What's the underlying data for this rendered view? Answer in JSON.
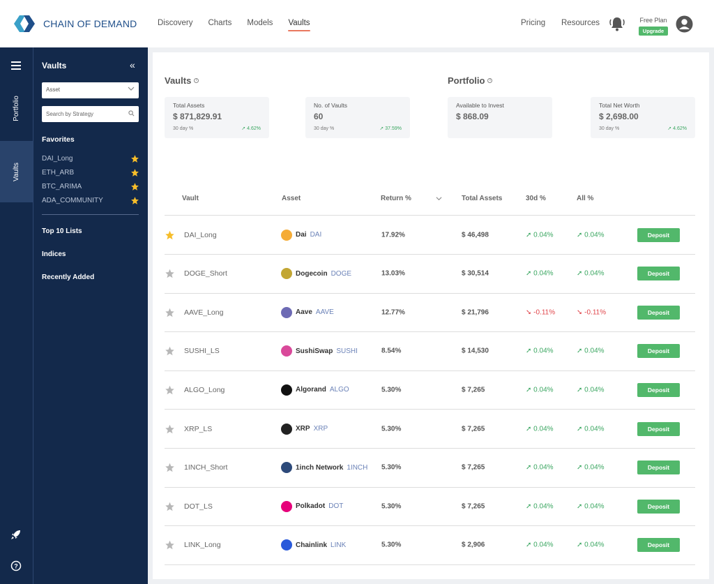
{
  "brand": {
    "name": "CHAIN OF DEMAND",
    "logo_icon": "chain-link-logo"
  },
  "nav": {
    "links": [
      "Discovery",
      "Charts",
      "Models",
      "Vaults"
    ],
    "active": "Vaults",
    "pricing": "Pricing",
    "resources": "Resources",
    "plan_label": "Free Plan",
    "upgrade_label": "Upgrade"
  },
  "rail": {
    "portfolio": "Portfolio",
    "vaults": "Vaults",
    "active": "Vaults"
  },
  "panel": {
    "title": "Vaults",
    "asset_select": "Asset",
    "search_placeholder": "Search by Strategy",
    "favorites_title": "Favorites",
    "favorites": [
      "DAI_Long",
      "ETH_ARB",
      "BTC_ARIMA",
      "ADA_COMMUNITY"
    ],
    "sections": [
      "Top 10 Lists",
      "Indices",
      "Recently Added"
    ]
  },
  "vaults_section": {
    "title": "Vaults",
    "cards": [
      {
        "label": "Total Assets",
        "value": "$ 871,829.91",
        "sub": "30 day %",
        "pct": "4.62%"
      },
      {
        "label": "No. of Vaults",
        "value": "60",
        "sub": "30 day %",
        "pct": "37.59%"
      }
    ]
  },
  "portfolio_section": {
    "title": "Portfolio",
    "cards": [
      {
        "label": "Available to Invest",
        "value": "$ 868.09"
      },
      {
        "label": "Total Net Worth",
        "value": "$ 2,698.00",
        "sub": "30 day %",
        "pct": "4.62%"
      }
    ]
  },
  "table": {
    "headers": {
      "vault": "Vault",
      "asset": "Asset",
      "return": "Return %",
      "total": "Total Assets",
      "d30": "30d %",
      "all": "All %"
    },
    "deposit_label": "Deposit",
    "rows": [
      {
        "fav": true,
        "vault": "DAI_Long",
        "asset": "Dai",
        "symbol": "DAI",
        "coin_color": "#f5ac37",
        "return": "17.92%",
        "total": "$ 46,498",
        "d30": "0.04%",
        "all": "0.04%",
        "up": true
      },
      {
        "fav": false,
        "vault": "DOGE_Short",
        "asset": "Dogecoin",
        "symbol": "DOGE",
        "coin_color": "#c2a633",
        "return": "13.03%",
        "total": "$ 30,514",
        "d30": "0.04%",
        "all": "0.04%",
        "up": true
      },
      {
        "fav": false,
        "vault": "AAVE_Long",
        "asset": "Aave",
        "symbol": "AAVE",
        "coin_color": "#6d6ab4",
        "return": "12.77%",
        "total": "$ 21,796",
        "d30": "-0.11%",
        "all": "-0.11%",
        "up": false
      },
      {
        "fav": false,
        "vault": "SUSHI_LS",
        "asset": "SushiSwap",
        "symbol": "SUSHI",
        "coin_color": "#d9499a",
        "return": "8.54%",
        "total": "$ 14,530",
        "d30": "0.04%",
        "all": "0.04%",
        "up": true
      },
      {
        "fav": false,
        "vault": "ALGO_Long",
        "asset": "Algorand",
        "symbol": "ALGO",
        "coin_color": "#111111",
        "return": "5.30%",
        "total": "$ 7,265",
        "d30": "0.04%",
        "all": "0.04%",
        "up": true
      },
      {
        "fav": false,
        "vault": "XRP_LS",
        "asset": "XRP",
        "symbol": "XRP",
        "coin_color": "#222222",
        "return": "5.30%",
        "total": "$ 7,265",
        "d30": "0.04%",
        "all": "0.04%",
        "up": true
      },
      {
        "fav": false,
        "vault": "1INCH_Short",
        "asset": "1inch Network",
        "symbol": "1INCH",
        "coin_color": "#2d4a7a",
        "return": "5.30%",
        "total": "$ 7,265",
        "d30": "0.04%",
        "all": "0.04%",
        "up": true
      },
      {
        "fav": false,
        "vault": "DOT_LS",
        "asset": "Polkadot",
        "symbol": "DOT",
        "coin_color": "#e6007a",
        "return": "5.30%",
        "total": "$ 7,265",
        "d30": "0.04%",
        "all": "0.04%",
        "up": true
      },
      {
        "fav": false,
        "vault": "LINK_Long",
        "asset": "Chainlink",
        "symbol": "LINK",
        "coin_color": "#2a5ada",
        "return": "5.30%",
        "total": "$ 2,906",
        "d30": "0.04%",
        "all": "0.04%",
        "up": true
      }
    ]
  },
  "colors": {
    "sidebar": "#13294b",
    "accent_green": "#52b86b",
    "positive": "#3aa660",
    "negative": "#e0454a",
    "star": "#f6bd2a",
    "nav_underline": "#e9785f"
  }
}
